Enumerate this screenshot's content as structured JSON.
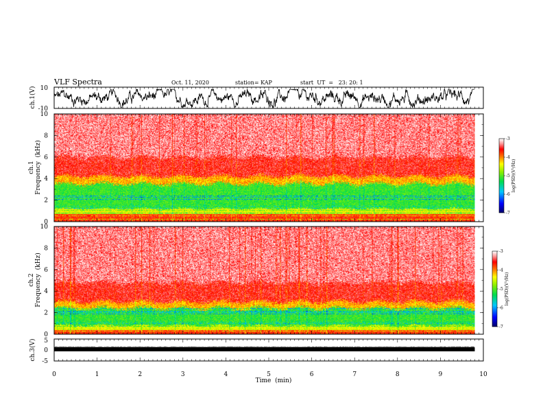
{
  "header": {
    "title": "VLF Spectra",
    "date": "Oct. 11, 2020",
    "station": "station= KAP",
    "start": "start  UT  =   23: 20: 1"
  },
  "chart_data": [
    {
      "type": "line",
      "name": "ch1-waveform",
      "ylabel": "ch.1(V)",
      "ylim": [
        -10,
        10
      ],
      "yticks": [
        "10",
        "-10"
      ],
      "xlim": [
        0,
        10
      ]
    },
    {
      "type": "heatmap",
      "name": "ch1-spectrogram",
      "ylabel_line1": "ch.1",
      "ylabel_line2": "Frequency  (kHz)",
      "ylim": [
        0,
        10
      ],
      "yticks": [
        "0",
        "2",
        "4",
        "6",
        "8",
        "10"
      ],
      "xlim": [
        0,
        10
      ],
      "data_end_min": 9.8,
      "bands_khz": {
        "green_band": [
          1.2,
          3.5
        ],
        "yellow_edge": [
          0.7,
          3.7
        ],
        "red_top": 4.2
      },
      "colorbar": {
        "label": "log(PSD)(V²/Hz)",
        "range": [
          -7,
          -3
        ],
        "ticks": [
          "-3",
          "-4",
          "-5",
          "-6",
          "-7"
        ]
      }
    },
    {
      "type": "heatmap",
      "name": "ch2-spectrogram",
      "ylabel_line1": "ch.2",
      "ylabel_line2": "Frequency  (kHz)",
      "ylim": [
        0,
        10
      ],
      "yticks": [
        "0",
        "2",
        "4",
        "6",
        "8",
        "10"
      ],
      "xlim": [
        0,
        10
      ],
      "data_end_min": 9.8,
      "bands_khz": {
        "green_band": [
          0.8,
          2.4
        ],
        "yellow_edge": [
          0.4,
          2.6
        ],
        "red_top": 3.0
      },
      "colorbar": {
        "label": "log(PSD)(V²/Hz)",
        "range": [
          -7,
          -3
        ],
        "ticks": [
          "-3",
          "-4",
          "-5",
          "-6",
          "-7"
        ]
      }
    },
    {
      "type": "line",
      "name": "ch3-waveform",
      "ylabel": "ch.3(V)",
      "ylim": [
        -5,
        5
      ],
      "yticks": [
        "5",
        "0",
        "-5"
      ],
      "xlim": [
        0,
        10
      ],
      "xlabel": "Time  (min)",
      "xticks": [
        "0",
        "1",
        "2",
        "3",
        "4",
        "5",
        "6",
        "7",
        "8",
        "9",
        "10"
      ]
    }
  ]
}
